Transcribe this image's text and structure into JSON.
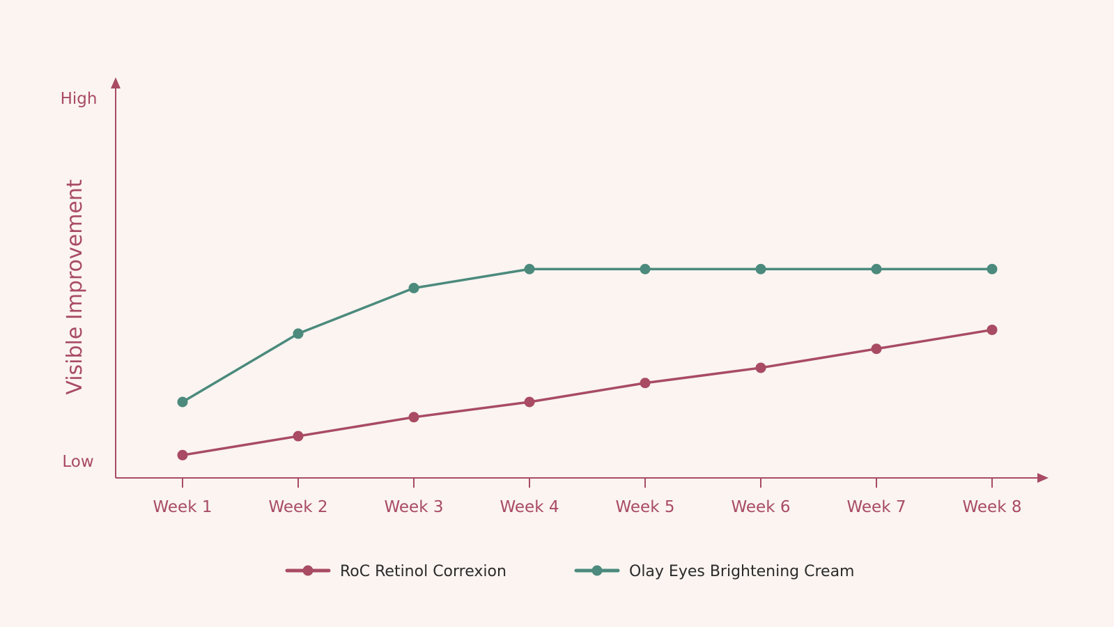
{
  "chart_data": {
    "type": "line",
    "categories": [
      "Week 1",
      "Week 2",
      "Week 3",
      "Week 4",
      "Week 5",
      "Week 6",
      "Week 7",
      "Week 8"
    ],
    "ylabel": "Visible Improvement",
    "ytick_high": "High",
    "ytick_low": "Low",
    "ylim": [
      0,
      10
    ],
    "grid": false,
    "legend_position": "bottom-center",
    "series": [
      {
        "name": "RoC Retinol Correxion",
        "values": [
          0.6,
          1.1,
          1.6,
          2.0,
          2.5,
          2.9,
          3.4,
          3.9
        ],
        "color": "#a84b63"
      },
      {
        "name": "Olay Eyes Brightening Cream",
        "values": [
          2.0,
          3.8,
          5.0,
          5.5,
          5.5,
          5.5,
          5.5,
          5.5
        ],
        "color": "#4b8a7c"
      }
    ],
    "axis_color": "#a84b63",
    "text_color": "#a84b63",
    "legend_text_color": "#2b2b2b"
  }
}
